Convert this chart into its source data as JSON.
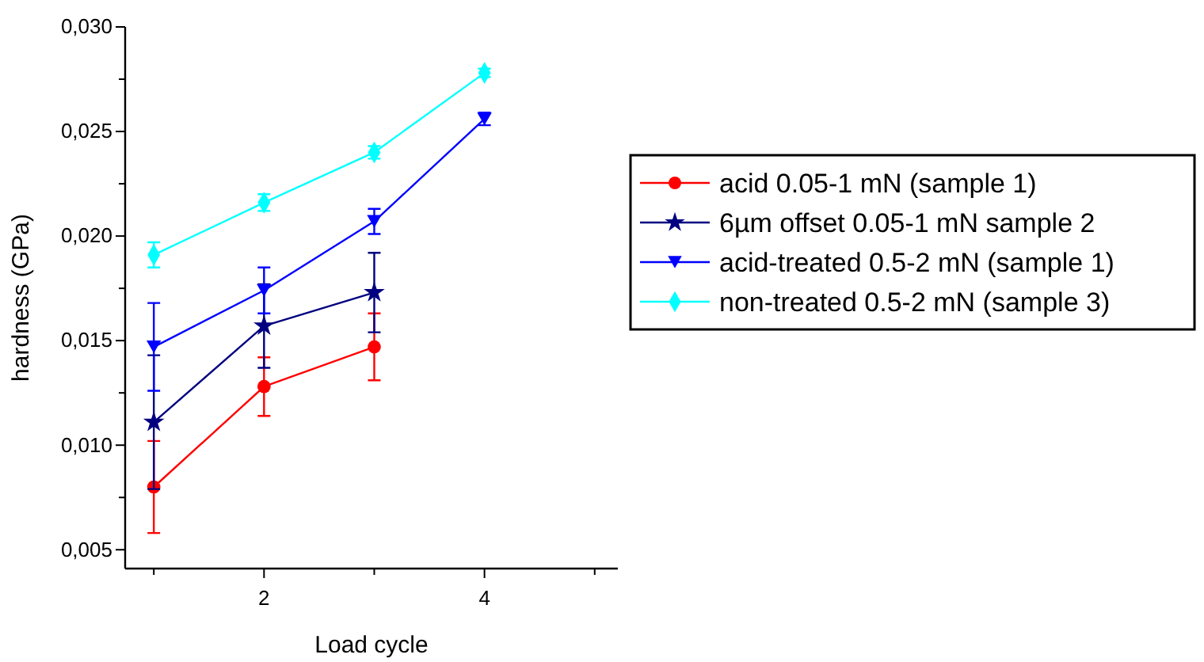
{
  "chart_data": {
    "type": "line",
    "xlabel": "Load cycle",
    "ylabel": "hardness (GPa)",
    "x": [
      1,
      2,
      3,
      4
    ],
    "xlim": [
      0.74,
      5.21
    ],
    "xticks": [
      {
        "value": 1,
        "label": null
      },
      2,
      {
        "value": 3,
        "label": null
      },
      4,
      {
        "value": 5,
        "label": null
      }
    ],
    "ylim": [
      0.0041,
      0.03
    ],
    "yticks": [
      {
        "value": 0.005,
        "label": "0,005"
      },
      {
        "value": 0.0075,
        "label": null
      },
      {
        "value": 0.01,
        "label": "0,010"
      },
      {
        "value": 0.0125,
        "label": null
      },
      {
        "value": 0.015,
        "label": "0,015"
      },
      {
        "value": 0.0175,
        "label": null
      },
      {
        "value": 0.02,
        "label": "0,020"
      },
      {
        "value": 0.0225,
        "label": null
      },
      {
        "value": 0.025,
        "label": "0,025"
      },
      {
        "value": 0.0275,
        "label": null
      },
      {
        "value": 0.03,
        "label": "0,030"
      }
    ],
    "grid": false,
    "legend": "right",
    "series": [
      {
        "name": "acid 0.05-1 mN (sample 1)",
        "color": "#ff0000",
        "marker": "circle",
        "values": [
          0.008,
          0.0128,
          0.0147,
          null
        ],
        "errors": [
          0.0022,
          0.0014,
          0.0016,
          null
        ]
      },
      {
        "name": "6µm offset 0.05-1 mN sample 2",
        "color": "#000080",
        "marker": "star",
        "values": [
          0.0111,
          0.0157,
          0.0173,
          null
        ],
        "errors": [
          0.0032,
          0.002,
          0.0019,
          null
        ]
      },
      {
        "name": "acid-treated 0.5-2 mN (sample 1)",
        "color": "#0000ff",
        "marker": "triangle",
        "values": [
          0.0147,
          0.0174,
          0.0207,
          0.0256
        ],
        "errors": [
          0.0021,
          0.0011,
          0.0006,
          0.0003
        ]
      },
      {
        "name": "non-treated 0.5-2 mN (sample 3)",
        "color": "#00ffff",
        "marker": "diamond",
        "values": [
          0.0191,
          0.0216,
          0.024,
          0.0278
        ],
        "errors": [
          0.0006,
          0.0004,
          0.0003,
          0.0002
        ]
      }
    ]
  }
}
